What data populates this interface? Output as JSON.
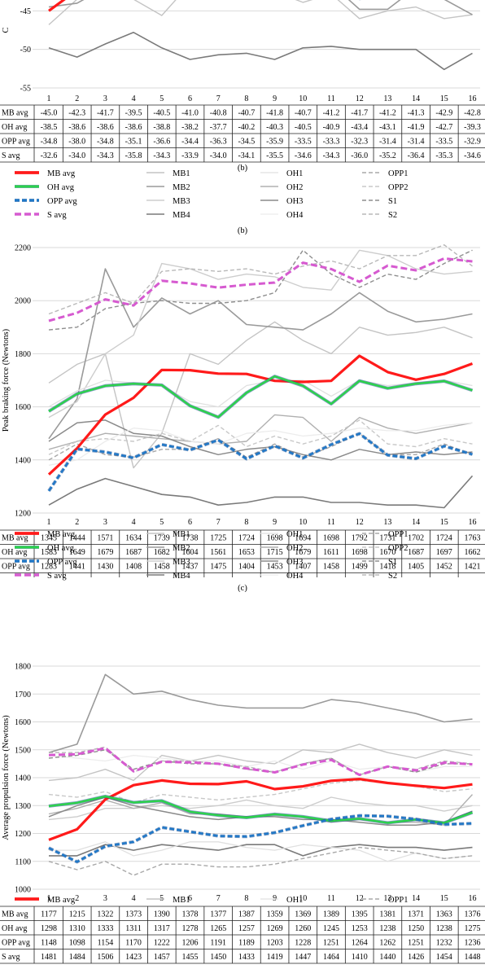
{
  "colors": {
    "MB avg": "#ff1a1a",
    "OH avg": "#2bd34a",
    "OPP avg": "#1f78c8",
    "S avg": "#d65ad0",
    "MB1": "#c4c4c4",
    "MB2": "#9a9a9a",
    "MB3": "#cdcdcd",
    "MB4": "#7a7a7a",
    "OH1": "#e0e0e0",
    "OH2": "#b0b0b0",
    "OH3": "#8a8a8a",
    "OH4": "#ececec",
    "OPP1": "#a8a8a8",
    "OPP2": "#c8c8c8",
    "S1": "#8e8e8e",
    "S2": "#b8b8b8"
  },
  "legend_rows": [
    [
      "MB avg",
      "MB1",
      "OH1",
      "OPP1"
    ],
    [
      "OH avg",
      "MB2",
      "OH2",
      "OPP2"
    ],
    [
      "OPP avg",
      "MB3",
      "OH3",
      "S1"
    ],
    [
      "S avg",
      "MB4",
      "OH4",
      "S2"
    ]
  ],
  "chart_data": [
    {
      "type": "line",
      "panel_label": "(b)",
      "ylim": [
        -55,
        -40
      ],
      "yticks": [
        -55,
        -50,
        -45
      ],
      "ylabel": "C",
      "x": [
        1,
        2,
        3,
        4,
        5,
        6,
        7,
        8,
        9,
        10,
        11,
        12,
        13,
        14,
        15,
        16
      ],
      "table_rows": [
        "MB avg",
        "OH avg",
        "OPP avg",
        "S avg"
      ],
      "series": [
        {
          "name": "MB avg",
          "values": [
            -45.0,
            -42.3,
            -41.7,
            -39.5,
            -40.5,
            -41.0,
            -40.8,
            -40.7,
            -41.8,
            -40.7,
            -41.2,
            -41.7,
            -41.2,
            -41.3,
            -42.9,
            -42.8
          ]
        },
        {
          "name": "OH avg",
          "values": [
            -38.5,
            -38.6,
            -38.6,
            -38.6,
            -38.8,
            -38.2,
            -37.7,
            -40.2,
            -40.3,
            -40.5,
            -40.9,
            -43.4,
            -43.1,
            -41.9,
            -42.7,
            -39.3
          ]
        },
        {
          "name": "OPP avg",
          "values": [
            -34.8,
            -38.0,
            -34.8,
            -35.1,
            -36.6,
            -34.4,
            -36.3,
            -34.5,
            -35.9,
            -33.5,
            -33.3,
            -32.3,
            -31.4,
            -31.4,
            -33.5,
            -32.9
          ]
        },
        {
          "name": "S avg",
          "values": [
            -32.6,
            -34.0,
            -34.3,
            -35.8,
            -34.3,
            -33.9,
            -34.0,
            -34.1,
            -35.5,
            -34.6,
            -34.3,
            -36.0,
            -35.2,
            -36.4,
            -35.3,
            -34.6
          ]
        },
        {
          "name": "MB1",
          "values": [
            -46.8,
            -43.5,
            -41.0,
            -43.5,
            -45.6,
            -41.5,
            -40.5,
            -42.0,
            -42.5,
            -43.9,
            -42.8,
            -46.0,
            -45.0,
            -44.5,
            -46.0,
            -45.5
          ]
        },
        {
          "name": "MB2",
          "values": [
            -44.5,
            -44.0,
            -42.0,
            -40.5,
            -41.5,
            -42.0,
            -41.0,
            -41.5,
            -42.2,
            -41.0,
            -41.5,
            -44.8,
            -44.8,
            -42.0,
            -43.5,
            -45.5
          ]
        },
        {
          "name": "MB4",
          "values": [
            -49.8,
            -51.0,
            -49.3,
            -47.8,
            -49.8,
            -51.3,
            -50.7,
            -50.5,
            -51.3,
            -49.8,
            -49.6,
            -50.0,
            -50.0,
            -50.0,
            -52.6,
            -50.5
          ]
        }
      ]
    },
    {
      "type": "line",
      "panel_label": "(c)",
      "ylabel": "Peak braking force (Newtons)",
      "ylim": [
        1200,
        2200
      ],
      "yticks": [
        1200,
        1400,
        1600,
        1800,
        2000,
        2200
      ],
      "x": [
        1,
        2,
        3,
        4,
        5,
        6,
        7,
        8,
        9,
        10,
        11,
        12,
        13,
        14,
        15,
        16
      ],
      "table_rows": [
        "MB avg",
        "OH avg",
        "OPP avg",
        "S avg"
      ],
      "series": [
        {
          "name": "MB avg",
          "values": [
            1345,
            1444,
            1571,
            1634,
            1739,
            1738,
            1725,
            1724,
            1698,
            1694,
            1698,
            1792,
            1731,
            1702,
            1724,
            1763
          ]
        },
        {
          "name": "OH avg",
          "values": [
            1583,
            1649,
            1679,
            1687,
            1682,
            1604,
            1561,
            1653,
            1715,
            1679,
            1611,
            1698,
            1670,
            1687,
            1697,
            1662
          ]
        },
        {
          "name": "OPP avg",
          "values": [
            1283,
            1441,
            1430,
            1408,
            1458,
            1437,
            1475,
            1404,
            1453,
            1407,
            1458,
            1499,
            1418,
            1405,
            1452,
            1421
          ]
        },
        {
          "name": "S avg",
          "values": [
            1924,
            1954,
            2005,
            1982,
            2075,
            2065,
            2049,
            2060,
            2068,
            2143,
            2119,
            2071,
            2132,
            2114,
            2159,
            2148
          ]
        },
        {
          "name": "MB1",
          "values": [
            1690,
            1760,
            1800,
            1370,
            1500,
            1800,
            1760,
            1850,
            1920,
            1850,
            1800,
            1900,
            1870,
            1880,
            1900,
            1860
          ]
        },
        {
          "name": "MB2",
          "values": [
            1480,
            1630,
            2120,
            1900,
            2010,
            1950,
            2000,
            1910,
            1900,
            1890,
            1950,
            2030,
            1960,
            1920,
            1930,
            1950
          ]
        },
        {
          "name": "MB3",
          "values": [
            1560,
            1620,
            1800,
            1870,
            2140,
            2120,
            2080,
            2100,
            2090,
            2050,
            2040,
            2190,
            2170,
            2120,
            2100,
            2110
          ]
        },
        {
          "name": "MB4",
          "values": [
            1230,
            1290,
            1330,
            1300,
            1270,
            1260,
            1230,
            1240,
            1260,
            1260,
            1240,
            1240,
            1230,
            1230,
            1220,
            1340
          ]
        },
        {
          "name": "OH1",
          "values": [
            1600,
            1660,
            1700,
            1690,
            1680,
            1620,
            1600,
            1680,
            1700,
            1700,
            1640,
            1700,
            1680,
            1690,
            1700,
            1680
          ]
        },
        {
          "name": "OH2",
          "values": [
            1440,
            1470,
            1500,
            1490,
            1480,
            1470,
            1460,
            1470,
            1570,
            1560,
            1470,
            1560,
            1520,
            1500,
            1520,
            1540
          ]
        },
        {
          "name": "OH3",
          "values": [
            1470,
            1540,
            1550,
            1500,
            1490,
            1450,
            1420,
            1440,
            1450,
            1420,
            1400,
            1440,
            1420,
            1430,
            1420,
            1430
          ]
        },
        {
          "name": "OH4",
          "values": [
            1380,
            1400,
            1470,
            1520,
            1510,
            1470,
            1460,
            1500,
            1510,
            1490,
            1500,
            1520,
            1510,
            1510,
            1530,
            1540
          ]
        },
        {
          "name": "OPP1",
          "values": [
            1400,
            1460,
            1420,
            1410,
            1440,
            1440,
            1480,
            1410,
            1460,
            1410,
            1450,
            1500,
            1420,
            1420,
            1460,
            1420
          ]
        },
        {
          "name": "OPP2",
          "values": [
            1420,
            1470,
            1480,
            1470,
            1500,
            1470,
            1530,
            1450,
            1490,
            1460,
            1490,
            1550,
            1460,
            1450,
            1480,
            1460
          ]
        },
        {
          "name": "S1",
          "values": [
            1890,
            1900,
            1970,
            1990,
            2000,
            1990,
            1990,
            2000,
            2030,
            2190,
            2100,
            2050,
            2100,
            2080,
            2140,
            2190
          ]
        },
        {
          "name": "S2",
          "values": [
            1950,
            1990,
            2030,
            1990,
            2110,
            2120,
            2110,
            2120,
            2100,
            2130,
            2150,
            2120,
            2170,
            2170,
            2210,
            2130
          ]
        }
      ]
    },
    {
      "type": "line",
      "ylabel": "Average propulsion force (Newtons)",
      "ylim": [
        1000,
        1800
      ],
      "yticks": [
        1000,
        1100,
        1200,
        1300,
        1400,
        1500,
        1600,
        1700,
        1800
      ],
      "x": [
        1,
        2,
        3,
        4,
        5,
        6,
        7,
        8,
        9,
        10,
        11,
        12,
        13,
        14,
        15,
        16
      ],
      "table_rows": [
        "MB avg",
        "OH avg",
        "OPP avg",
        "S avg"
      ],
      "series": [
        {
          "name": "MB avg",
          "values": [
            1177,
            1215,
            1322,
            1373,
            1390,
            1378,
            1377,
            1387,
            1359,
            1369,
            1389,
            1395,
            1381,
            1371,
            1363,
            1376
          ]
        },
        {
          "name": "OH avg",
          "values": [
            1298,
            1310,
            1333,
            1311,
            1317,
            1278,
            1265,
            1257,
            1269,
            1260,
            1245,
            1253,
            1238,
            1250,
            1238,
            1275
          ]
        },
        {
          "name": "OPP avg",
          "values": [
            1148,
            1098,
            1154,
            1170,
            1222,
            1206,
            1191,
            1189,
            1203,
            1228,
            1251,
            1264,
            1262,
            1251,
            1232,
            1236
          ]
        },
        {
          "name": "S avg",
          "values": [
            1481,
            1484,
            1506,
            1423,
            1457,
            1455,
            1450,
            1433,
            1419,
            1447,
            1464,
            1410,
            1440,
            1426,
            1454,
            1448
          ]
        },
        {
          "name": "MB1",
          "values": [
            1390,
            1400,
            1430,
            1390,
            1480,
            1460,
            1480,
            1460,
            1450,
            1500,
            1490,
            1520,
            1490,
            1470,
            1500,
            1480
          ]
        },
        {
          "name": "MB2",
          "values": [
            1490,
            1520,
            1770,
            1700,
            1710,
            1680,
            1660,
            1650,
            1650,
            1650,
            1680,
            1670,
            1650,
            1630,
            1600,
            1610
          ]
        },
        {
          "name": "MB3",
          "values": [
            1250,
            1260,
            1290,
            1290,
            1300,
            1290,
            1300,
            1320,
            1300,
            1290,
            1330,
            1310,
            1300,
            1300,
            1280,
            1300
          ]
        },
        {
          "name": "MB4",
          "values": [
            1120,
            1120,
            1160,
            1140,
            1160,
            1150,
            1140,
            1160,
            1160,
            1120,
            1150,
            1160,
            1150,
            1150,
            1140,
            1150
          ]
        },
        {
          "name": "OH1",
          "values": [
            1140,
            1140,
            1170,
            1120,
            1140,
            1170,
            1170,
            1150,
            1140,
            1160,
            1150,
            1140,
            1100,
            1130,
            1110,
            1120
          ]
        },
        {
          "name": "OH2",
          "values": [
            1270,
            1290,
            1320,
            1290,
            1310,
            1270,
            1270,
            1260,
            1270,
            1260,
            1240,
            1250,
            1240,
            1240,
            1230,
            1340
          ]
        },
        {
          "name": "OH3",
          "values": [
            1260,
            1300,
            1330,
            1300,
            1280,
            1260,
            1250,
            1260,
            1260,
            1250,
            1250,
            1240,
            1230,
            1230,
            1240,
            1280
          ]
        },
        {
          "name": "OH4",
          "values": [
            1480,
            1470,
            1460,
            1480,
            1470,
            1460,
            1460,
            1440,
            1460,
            1430,
            1460,
            1430,
            1440,
            1420,
            1440,
            1440
          ]
        },
        {
          "name": "OPP1",
          "values": [
            1100,
            1070,
            1100,
            1050,
            1090,
            1090,
            1080,
            1080,
            1090,
            1110,
            1130,
            1150,
            1140,
            1130,
            1110,
            1120
          ]
        },
        {
          "name": "OPP2",
          "values": [
            1340,
            1330,
            1350,
            1310,
            1340,
            1330,
            1320,
            1330,
            1340,
            1360,
            1380,
            1390,
            1380,
            1370,
            1350,
            1360
          ]
        },
        {
          "name": "S1",
          "values": [
            1470,
            1480,
            1500,
            1430,
            1460,
            1450,
            1450,
            1430,
            1420,
            1450,
            1470,
            1410,
            1440,
            1420,
            1450,
            1450
          ]
        },
        {
          "name": "S2",
          "values": [
            1490,
            1490,
            1510,
            1420,
            1460,
            1460,
            1450,
            1440,
            1420,
            1450,
            1470,
            1410,
            1440,
            1430,
            1460,
            1450
          ]
        }
      ]
    }
  ]
}
